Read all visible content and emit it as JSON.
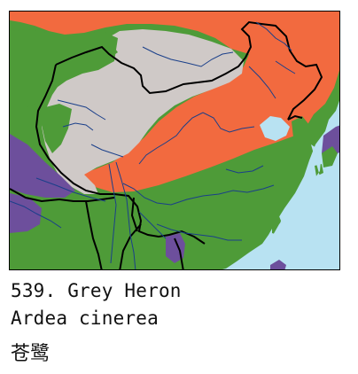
{
  "caption": {
    "line1": "539. Grey Heron",
    "line2": "Ardea cinerea",
    "line3": "苍鹭"
  },
  "map": {
    "colors": {
      "sea": "#b8e2f2",
      "breeding": "#f26a3f",
      "resident": "#4e9b38",
      "passage": "#cfc9c7",
      "winter": "#6d4f9c",
      "border": "#000000",
      "river": "#1a3f8a"
    }
  }
}
